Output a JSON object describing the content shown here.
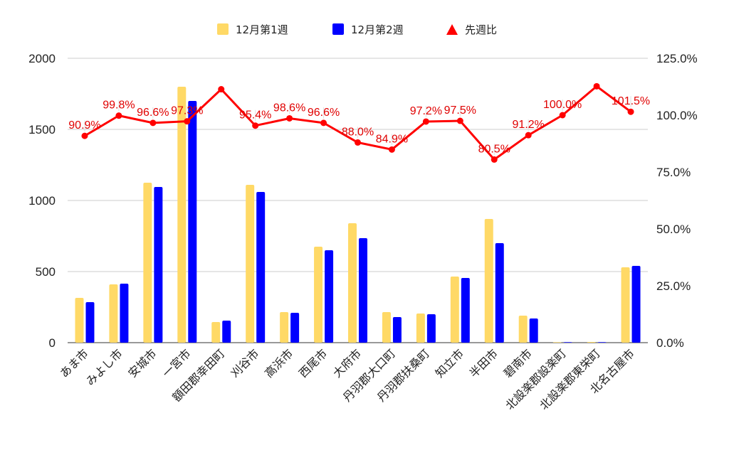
{
  "chart_data": {
    "type": "bar",
    "categories": [
      "あま市",
      "みよし市",
      "安城市",
      "一宮市",
      "額田郡幸田町",
      "刈谷市",
      "高浜市",
      "西尾市",
      "大府市",
      "丹羽郡大口町",
      "丹羽郡扶桑町",
      "知立市",
      "半田市",
      "碧南市",
      "北設楽郡設楽町",
      "北設楽郡東栄町",
      "北名古屋市"
    ],
    "series": [
      {
        "name": "12月第1週",
        "type": "bar",
        "axis": "left",
        "color": "#ffd966",
        "values": [
          315,
          410,
          1125,
          1800,
          145,
          1110,
          215,
          675,
          840,
          215,
          205,
          465,
          870,
          190,
          3,
          5,
          530
        ]
      },
      {
        "name": "12月第2週",
        "type": "bar",
        "axis": "left",
        "color": "#0000ff",
        "values": [
          285,
          415,
          1095,
          1700,
          155,
          1060,
          210,
          650,
          735,
          180,
          200,
          455,
          700,
          170,
          2,
          4,
          540
        ]
      },
      {
        "name": "先週比",
        "type": "line",
        "axis": "right",
        "color": "#ff0000",
        "values": [
          90.9,
          99.8,
          96.6,
          97.3,
          111.4,
          95.4,
          98.6,
          96.6,
          88.0,
          84.9,
          97.2,
          97.5,
          80.5,
          91.2,
          100.0,
          112.7,
          101.5
        ],
        "labels": [
          "90.9%",
          "99.8%",
          "96.6%",
          "97.3%",
          "",
          "95.4%",
          "98.6%",
          "96.6%",
          "88.0%",
          "84.9%",
          "97.2%",
          "97.5%",
          "80.5%",
          "91.2%",
          "100.0%",
          "",
          "101.5%"
        ]
      }
    ],
    "y_left": {
      "range": [
        0,
        2000
      ],
      "ticks": [
        "0",
        "500",
        "1000",
        "1500",
        "2000"
      ]
    },
    "y_right": {
      "range": [
        0,
        125
      ],
      "ticks": [
        "0.0%",
        "25.0%",
        "50.0%",
        "75.0%",
        "100.0%",
        "125.0%"
      ]
    },
    "grid": true,
    "legend_position": "top-center"
  }
}
